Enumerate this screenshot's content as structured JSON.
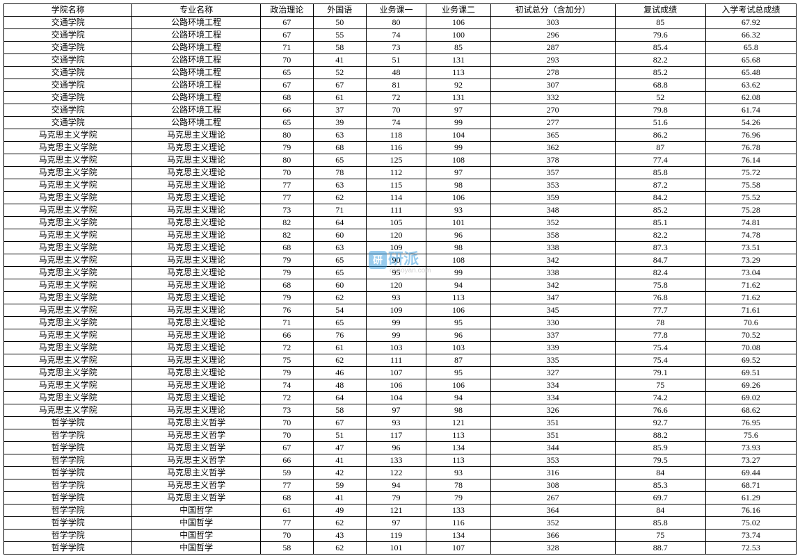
{
  "watermark": {
    "text": "研派",
    "sub": "okaoyan.com"
  },
  "table": {
    "columns": [
      "学院名称",
      "专业名称",
      "政治理论",
      "外国语",
      "业务课一",
      "业务课二",
      "初试总分（含加分）",
      "复试成绩",
      "入学考试总成绩"
    ],
    "column_classes": [
      "col-college",
      "col-major",
      "col-politics",
      "col-foreign",
      "col-course1",
      "col-course2",
      "col-prelim",
      "col-retest",
      "col-final"
    ],
    "rows": [
      [
        "交通学院",
        "公路环境工程",
        "67",
        "50",
        "80",
        "106",
        "303",
        "85",
        "67.92"
      ],
      [
        "交通学院",
        "公路环境工程",
        "67",
        "55",
        "74",
        "100",
        "296",
        "79.6",
        "66.32"
      ],
      [
        "交通学院",
        "公路环境工程",
        "71",
        "58",
        "73",
        "85",
        "287",
        "85.4",
        "65.8"
      ],
      [
        "交通学院",
        "公路环境工程",
        "70",
        "41",
        "51",
        "131",
        "293",
        "82.2",
        "65.68"
      ],
      [
        "交通学院",
        "公路环境工程",
        "65",
        "52",
        "48",
        "113",
        "278",
        "85.2",
        "65.48"
      ],
      [
        "交通学院",
        "公路环境工程",
        "67",
        "67",
        "81",
        "92",
        "307",
        "68.8",
        "63.62"
      ],
      [
        "交通学院",
        "公路环境工程",
        "68",
        "61",
        "72",
        "131",
        "332",
        "52",
        "62.08"
      ],
      [
        "交通学院",
        "公路环境工程",
        "66",
        "37",
        "70",
        "97",
        "270",
        "79.8",
        "61.74"
      ],
      [
        "交通学院",
        "公路环境工程",
        "65",
        "39",
        "74",
        "99",
        "277",
        "51.6",
        "54.26"
      ],
      [
        "马克思主义学院",
        "马克思主义理论",
        "80",
        "63",
        "118",
        "104",
        "365",
        "86.2",
        "76.96"
      ],
      [
        "马克思主义学院",
        "马克思主义理论",
        "79",
        "68",
        "116",
        "99",
        "362",
        "87",
        "76.78"
      ],
      [
        "马克思主义学院",
        "马克思主义理论",
        "80",
        "65",
        "125",
        "108",
        "378",
        "77.4",
        "76.14"
      ],
      [
        "马克思主义学院",
        "马克思主义理论",
        "70",
        "78",
        "112",
        "97",
        "357",
        "85.8",
        "75.72"
      ],
      [
        "马克思主义学院",
        "马克思主义理论",
        "77",
        "63",
        "115",
        "98",
        "353",
        "87.2",
        "75.58"
      ],
      [
        "马克思主义学院",
        "马克思主义理论",
        "77",
        "62",
        "114",
        "106",
        "359",
        "84.2",
        "75.52"
      ],
      [
        "马克思主义学院",
        "马克思主义理论",
        "73",
        "71",
        "111",
        "93",
        "348",
        "85.2",
        "75.28"
      ],
      [
        "马克思主义学院",
        "马克思主义理论",
        "82",
        "64",
        "105",
        "101",
        "352",
        "85.1",
        "74.81"
      ],
      [
        "马克思主义学院",
        "马克思主义理论",
        "82",
        "60",
        "120",
        "96",
        "358",
        "82.2",
        "74.78"
      ],
      [
        "马克思主义学院",
        "马克思主义理论",
        "68",
        "63",
        "109",
        "98",
        "338",
        "87.3",
        "73.51"
      ],
      [
        "马克思主义学院",
        "马克思主义理论",
        "79",
        "65",
        "90",
        "108",
        "342",
        "84.7",
        "73.29"
      ],
      [
        "马克思主义学院",
        "马克思主义理论",
        "79",
        "65",
        "95",
        "99",
        "338",
        "82.4",
        "73.04"
      ],
      [
        "马克思主义学院",
        "马克思主义理论",
        "68",
        "60",
        "120",
        "94",
        "342",
        "75.8",
        "71.62"
      ],
      [
        "马克思主义学院",
        "马克思主义理论",
        "79",
        "62",
        "93",
        "113",
        "347",
        "76.8",
        "71.62"
      ],
      [
        "马克思主义学院",
        "马克思主义理论",
        "76",
        "54",
        "109",
        "106",
        "345",
        "77.7",
        "71.61"
      ],
      [
        "马克思主义学院",
        "马克思主义理论",
        "71",
        "65",
        "99",
        "95",
        "330",
        "78",
        "70.6"
      ],
      [
        "马克思主义学院",
        "马克思主义理论",
        "66",
        "76",
        "99",
        "96",
        "337",
        "77.8",
        "70.52"
      ],
      [
        "马克思主义学院",
        "马克思主义理论",
        "72",
        "61",
        "103",
        "103",
        "339",
        "75.4",
        "70.08"
      ],
      [
        "马克思主义学院",
        "马克思主义理论",
        "75",
        "62",
        "111",
        "87",
        "335",
        "75.4",
        "69.52"
      ],
      [
        "马克思主义学院",
        "马克思主义理论",
        "79",
        "46",
        "107",
        "95",
        "327",
        "79.1",
        "69.51"
      ],
      [
        "马克思主义学院",
        "马克思主义理论",
        "74",
        "48",
        "106",
        "106",
        "334",
        "75",
        "69.26"
      ],
      [
        "马克思主义学院",
        "马克思主义理论",
        "72",
        "64",
        "104",
        "94",
        "334",
        "74.2",
        "69.02"
      ],
      [
        "马克思主义学院",
        "马克思主义理论",
        "73",
        "58",
        "97",
        "98",
        "326",
        "76.6",
        "68.62"
      ],
      [
        "哲学学院",
        "马克思主义哲学",
        "70",
        "67",
        "93",
        "121",
        "351",
        "92.7",
        "76.95"
      ],
      [
        "哲学学院",
        "马克思主义哲学",
        "70",
        "51",
        "117",
        "113",
        "351",
        "88.2",
        "75.6"
      ],
      [
        "哲学学院",
        "马克思主义哲学",
        "67",
        "47",
        "96",
        "134",
        "344",
        "85.9",
        "73.93"
      ],
      [
        "哲学学院",
        "马克思主义哲学",
        "66",
        "41",
        "133",
        "113",
        "353",
        "79.5",
        "73.27"
      ],
      [
        "哲学学院",
        "马克思主义哲学",
        "59",
        "42",
        "122",
        "93",
        "316",
        "84",
        "69.44"
      ],
      [
        "哲学学院",
        "马克思主义哲学",
        "77",
        "59",
        "94",
        "78",
        "308",
        "85.3",
        "68.71"
      ],
      [
        "哲学学院",
        "马克思主义哲学",
        "68",
        "41",
        "79",
        "79",
        "267",
        "69.7",
        "61.29"
      ],
      [
        "哲学学院",
        "中国哲学",
        "61",
        "49",
        "121",
        "133",
        "364",
        "84",
        "76.16"
      ],
      [
        "哲学学院",
        "中国哲学",
        "77",
        "62",
        "97",
        "116",
        "352",
        "85.8",
        "75.02"
      ],
      [
        "哲学学院",
        "中国哲学",
        "70",
        "43",
        "119",
        "134",
        "366",
        "75",
        "73.74"
      ],
      [
        "哲学学院",
        "中国哲学",
        "58",
        "62",
        "101",
        "107",
        "328",
        "88.7",
        "72.53"
      ]
    ]
  }
}
